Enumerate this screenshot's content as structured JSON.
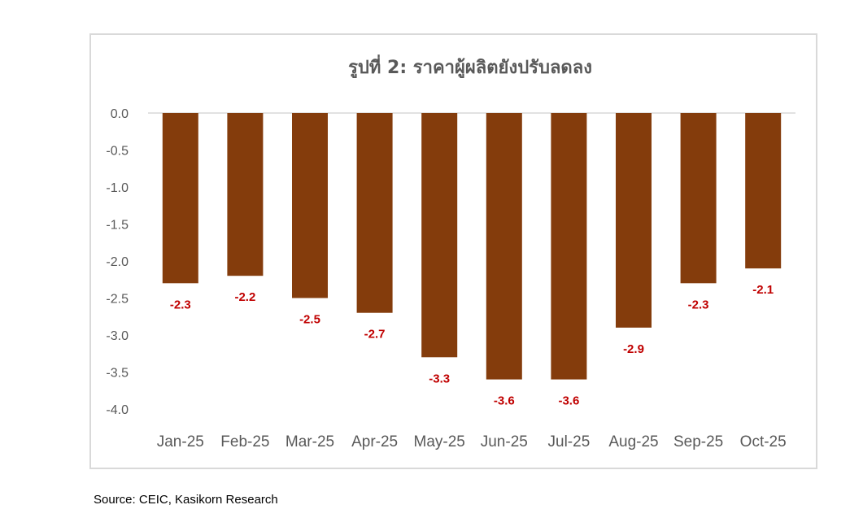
{
  "chart_data": {
    "type": "bar",
    "title": "รูปที่ 2: ราคาผู้ผลิตยังปรับลดลง",
    "categories": [
      "Jan-25",
      "Feb-25",
      "Mar-25",
      "Apr-25",
      "May-25",
      "Jun-25",
      "Jul-25",
      "Aug-25",
      "Sep-25",
      "Oct-25"
    ],
    "values": [
      -2.3,
      -2.2,
      -2.5,
      -2.7,
      -3.3,
      -3.6,
      -3.6,
      -2.9,
      -2.3,
      -2.1
    ],
    "data_labels": [
      "-2.3",
      "-2.2",
      "-2.5",
      "-2.7",
      "-3.3",
      "-3.6",
      "-3.6",
      "-2.9",
      "-2.3",
      "-2.1"
    ],
    "y_ticks": [
      "0.0",
      "-0.5",
      "-1.0",
      "-1.5",
      "-2.0",
      "-2.5",
      "-3.0",
      "-3.5",
      "-4.0"
    ],
    "ylim": [
      -4.0,
      0.0
    ],
    "grid": false,
    "bar_color": "#843c0c",
    "label_color": "#c00000"
  },
  "source": "Source: CEIC, Kasikorn Research"
}
